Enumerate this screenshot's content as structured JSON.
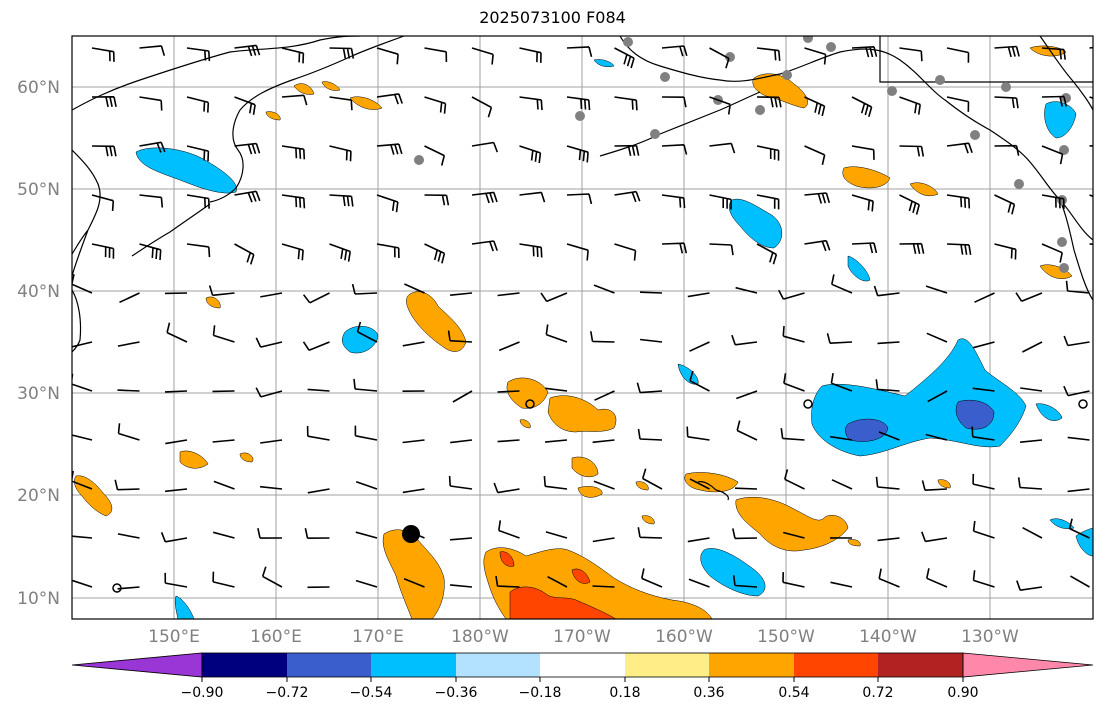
{
  "title": "2025073100 F084",
  "map": {
    "lat_labels": [
      "60°N",
      "50°N",
      "40°N",
      "30°N",
      "20°N",
      "10°N"
    ],
    "lon_labels": [
      "150°E",
      "160°E",
      "170°E",
      "180°W",
      "170°W",
      "160°W",
      "150°W",
      "140°W",
      "130°W"
    ],
    "gridline_color": "#a0a0a0",
    "coastline_color": "#000000",
    "station_marker_color": "#808080",
    "typhoon_marker_color": "#000000"
  },
  "colorbar": {
    "colors": [
      "#9a35d6",
      "#00007f",
      "#3a5fcd",
      "#00bfff",
      "#b2e2ff",
      "#ffffff",
      "#ffee88",
      "#ffa500",
      "#ff4500",
      "#b22222",
      "#ff88aa"
    ],
    "tick_labels": [
      "−0.90",
      "−0.72",
      "−0.54",
      "−0.36",
      "−0.18",
      "0.18",
      "0.36",
      "0.54",
      "0.72",
      "0.90"
    ]
  }
}
